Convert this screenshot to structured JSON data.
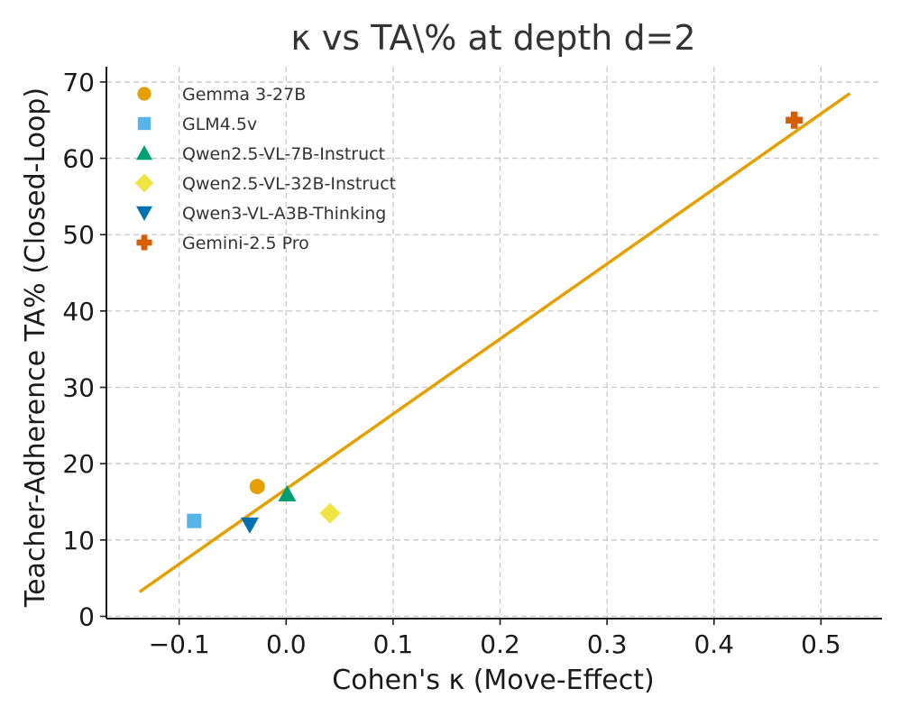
{
  "chart_data": {
    "type": "scatter",
    "title": "κ vs TA\\% at depth d=2",
    "xlabel": "Cohen's κ (Move-Effect)",
    "ylabel": "Teacher-Adherence TA% (Closed-Loop)",
    "xlim": [
      -0.168,
      0.557
    ],
    "ylim": [
      -0.3,
      72
    ],
    "x_ticks": [
      -0.1,
      0.0,
      0.1,
      0.2,
      0.3,
      0.4,
      0.5
    ],
    "x_tick_labels": [
      "−0.1",
      "0.0",
      "0.1",
      "0.2",
      "0.3",
      "0.4",
      "0.5"
    ],
    "y_ticks": [
      0,
      10,
      20,
      30,
      40,
      50,
      60,
      70
    ],
    "y_tick_labels": [
      "0",
      "10",
      "20",
      "30",
      "40",
      "50",
      "60",
      "70"
    ],
    "grid": true,
    "legend_position": "top-left",
    "series": [
      {
        "name": "Gemma 3-27B",
        "marker": "circle",
        "color": "#E69F00",
        "points": [
          {
            "x": -0.027,
            "y": 17.0
          }
        ]
      },
      {
        "name": "GLM4.5v",
        "marker": "square",
        "color": "#56B4E9",
        "points": [
          {
            "x": -0.086,
            "y": 12.5
          }
        ]
      },
      {
        "name": "Qwen2.5-VL-7B-Instruct",
        "marker": "triangle-up",
        "color": "#009E73",
        "points": [
          {
            "x": 0.001,
            "y": 16.0
          }
        ]
      },
      {
        "name": "Qwen2.5-VL-32B-Instruct",
        "marker": "diamond",
        "color": "#F0E442",
        "points": [
          {
            "x": 0.041,
            "y": 13.5
          }
        ]
      },
      {
        "name": "Qwen3-VL-A3B-Thinking",
        "marker": "triangle-down",
        "color": "#0072B2",
        "points": [
          {
            "x": -0.034,
            "y": 12.0
          }
        ]
      },
      {
        "name": "Gemini-2.5 Pro",
        "marker": "plus",
        "color": "#D55E00",
        "points": [
          {
            "x": 0.475,
            "y": 65.0
          }
        ]
      }
    ],
    "fit_line": {
      "color": "#E69F00",
      "points": [
        {
          "x": -0.137,
          "y": 3.2
        },
        {
          "x": 0.527,
          "y": 68.5
        }
      ]
    }
  }
}
